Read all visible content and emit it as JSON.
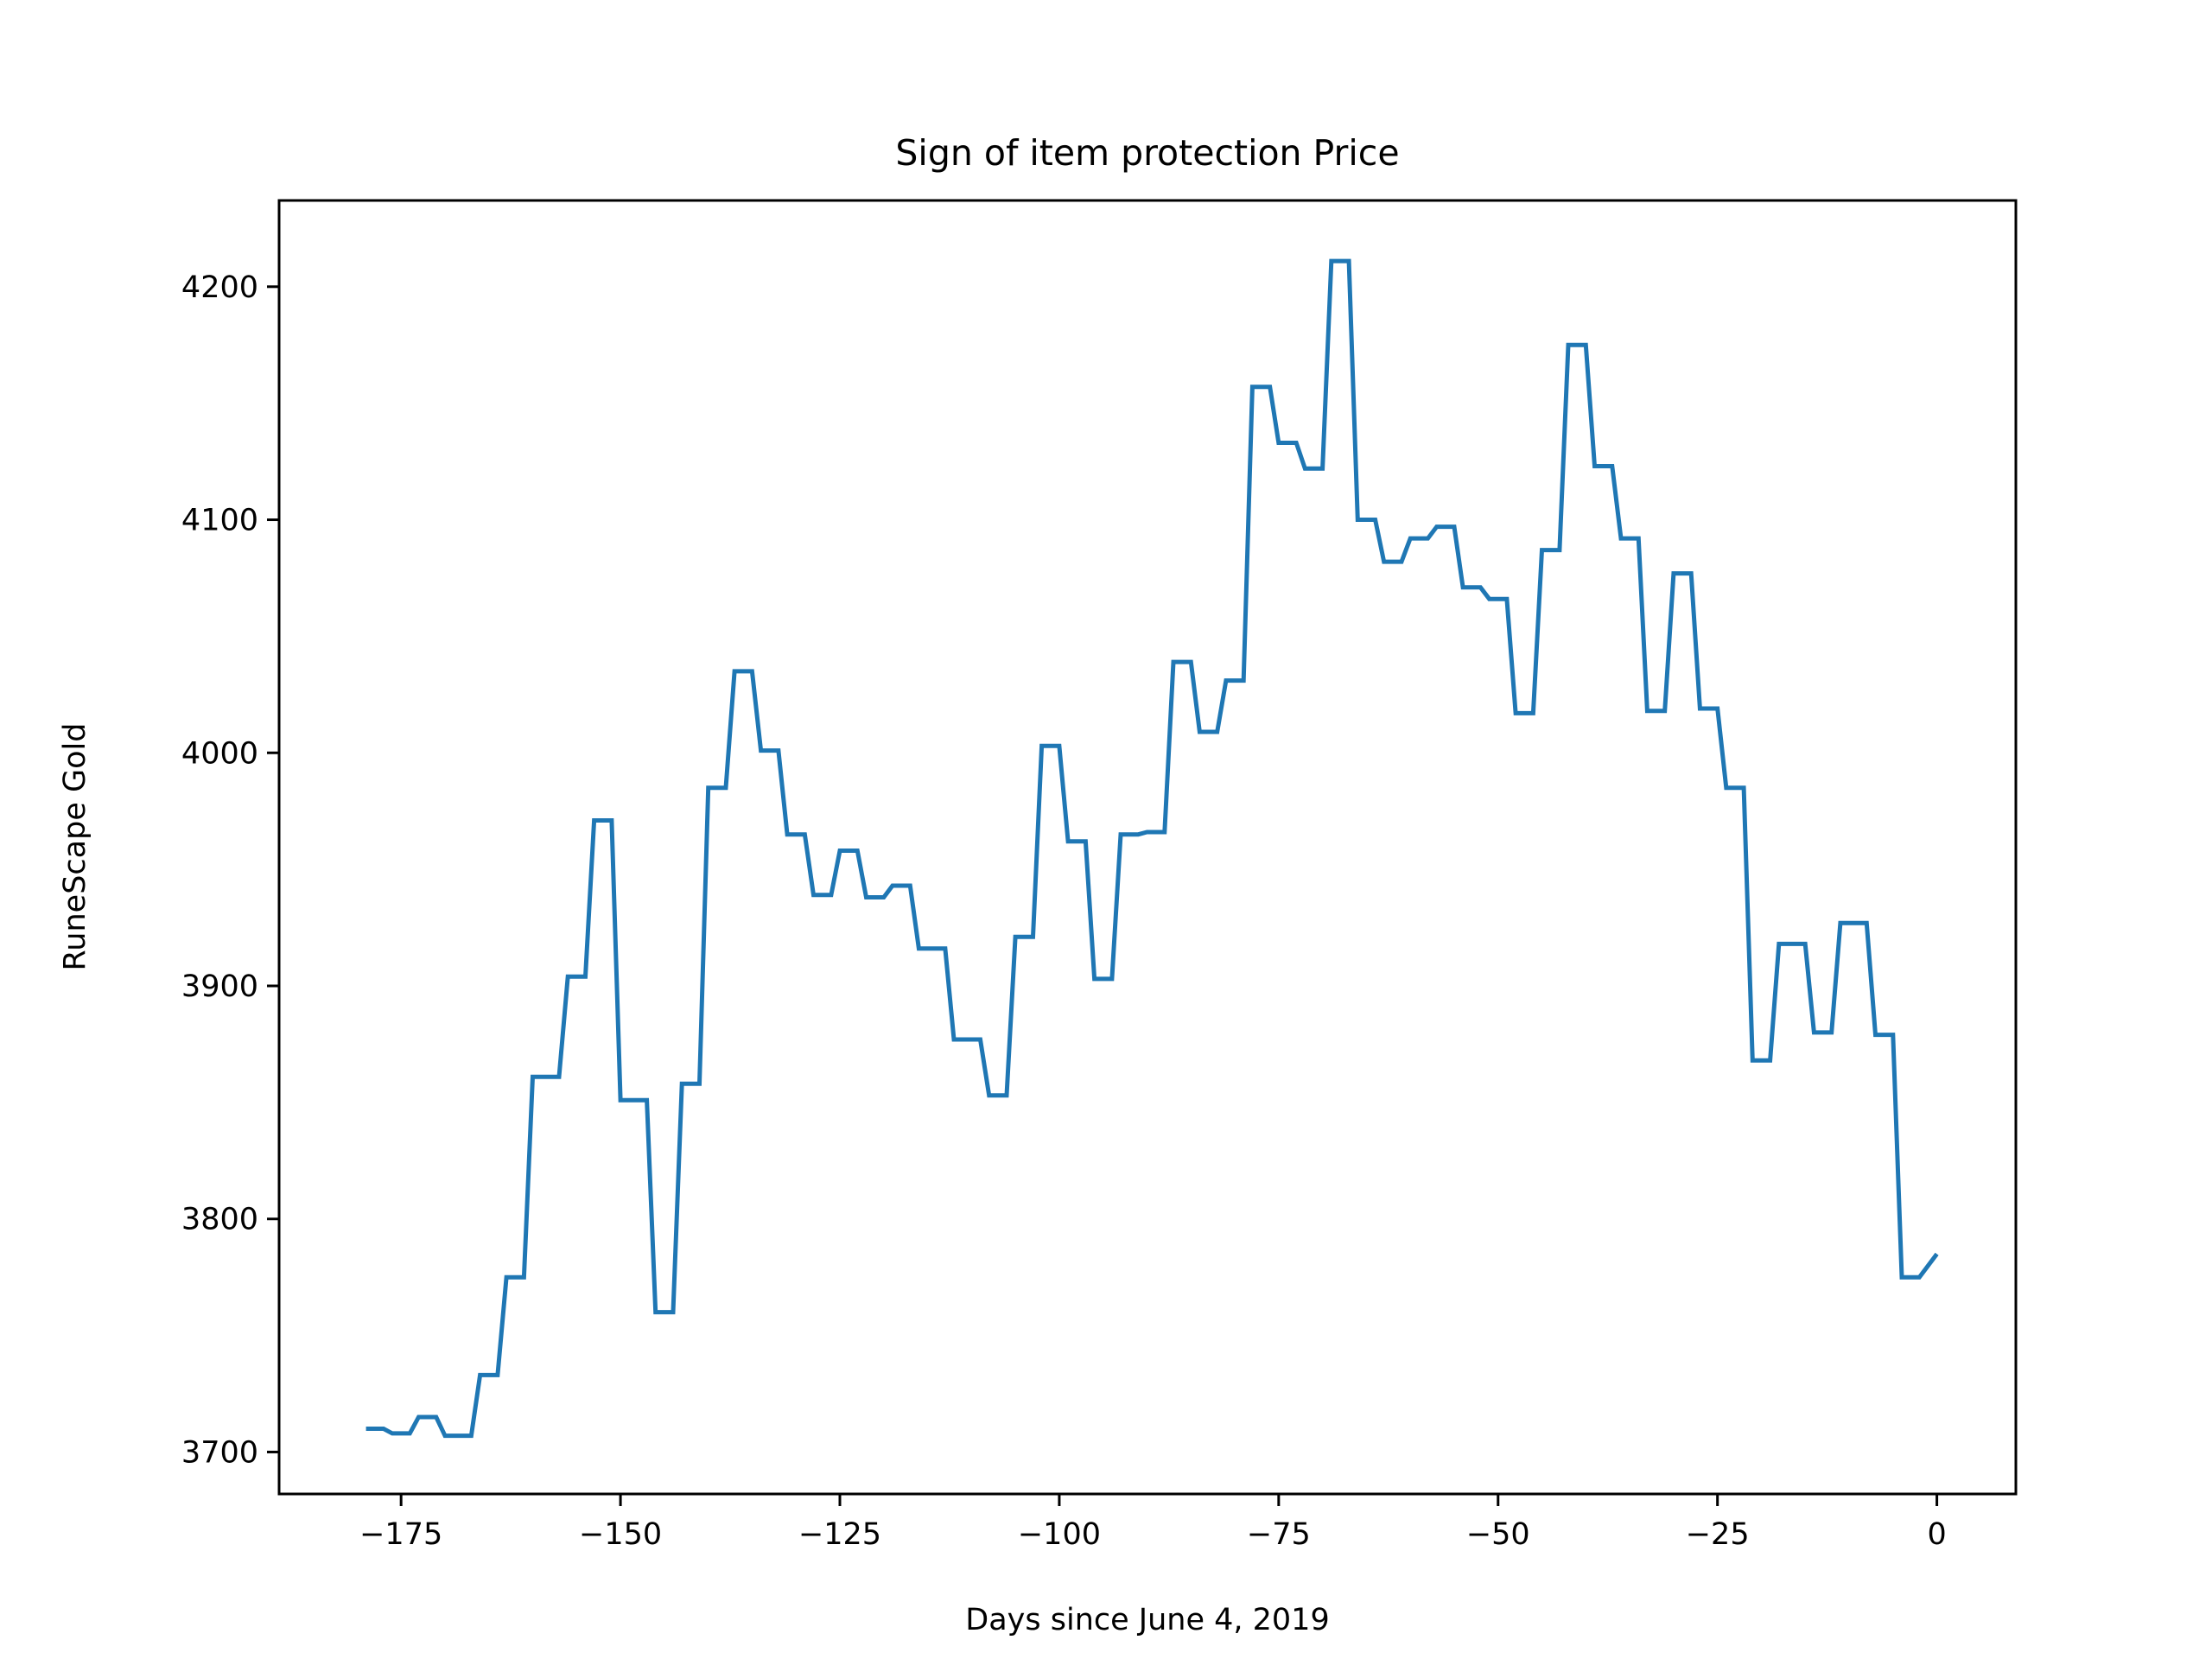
{
  "chart_data": {
    "type": "line",
    "title": "Sign of item protection Price",
    "xlabel": "Days since June 4, 2019",
    "ylabel": "RuneScape Gold",
    "xlim": [
      -188.9,
      9.0
    ],
    "ylim": [
      3682,
      4237
    ],
    "xticks": [
      -175,
      -150,
      -125,
      -100,
      -75,
      -50,
      -25,
      0
    ],
    "xtick_labels": [
      "−175",
      "−150",
      "−125",
      "−100",
      "−75",
      "−50",
      "−25",
      "0"
    ],
    "yticks": [
      3700,
      3800,
      3900,
      4000,
      4100,
      4200
    ],
    "ytick_labels": [
      "3700",
      "3800",
      "3900",
      "4000",
      "4100",
      "4200"
    ],
    "grid": false,
    "legend": "none",
    "series": [
      {
        "color": "#1f77b4",
        "x": [
          -179,
          -177,
          -176,
          -174,
          -173,
          -171,
          -170,
          -167,
          -166,
          -164,
          -163,
          -161,
          -160,
          -157,
          -156,
          -154,
          -153,
          -151,
          -150,
          -147,
          -146,
          -144,
          -143,
          -141,
          -140,
          -138,
          -137,
          -135,
          -134,
          -132,
          -131,
          -129,
          -128,
          -126,
          -125,
          -123,
          -122,
          -120,
          -119,
          -117,
          -116,
          -113,
          -112,
          -109,
          -108,
          -106,
          -105,
          -103,
          -102,
          -100,
          -99,
          -97,
          -96,
          -94,
          -93,
          -91,
          -90,
          -88,
          -87,
          -85,
          -84,
          -82,
          -81,
          -79,
          -78,
          -76,
          -75,
          -73,
          -72,
          -70,
          -69,
          -67,
          -66,
          -64,
          -63,
          -61,
          -60,
          -58,
          -57,
          -55,
          -54,
          -52,
          -51,
          -49,
          -48,
          -46,
          -45,
          -43,
          -42,
          -40,
          -39,
          -37,
          -36,
          -34,
          -33,
          -31,
          -30,
          -28,
          -27,
          -25,
          -24,
          -22,
          -21,
          -19,
          -18,
          -15,
          -14,
          -12,
          -11,
          -8,
          -7,
          -5,
          -4,
          -2,
          0
        ],
        "y": [
          3710,
          3710,
          3708,
          3708,
          3715,
          3715,
          3707,
          3707,
          3733,
          3733,
          3775,
          3775,
          3861,
          3861,
          3904,
          3904,
          3971,
          3971,
          3851,
          3851,
          3760,
          3760,
          3858,
          3858,
          3985,
          3985,
          4035,
          4035,
          4001,
          4001,
          3965,
          3965,
          3939,
          3939,
          3958,
          3958,
          3938,
          3938,
          3943,
          3943,
          3916,
          3916,
          3877,
          3877,
          3853,
          3853,
          3921,
          3921,
          4003,
          4003,
          3962,
          3962,
          3903,
          3903,
          3965,
          3965,
          3966,
          3966,
          4039,
          4039,
          4009,
          4009,
          4031,
          4031,
          4157,
          4157,
          4133,
          4133,
          4122,
          4122,
          4211,
          4211,
          4100,
          4100,
          4082,
          4082,
          4092,
          4092,
          4097,
          4097,
          4071,
          4071,
          4066,
          4066,
          4017,
          4017,
          4087,
          4087,
          4175,
          4175,
          4123,
          4123,
          4092,
          4092,
          4018,
          4018,
          4077,
          4077,
          4019,
          4019,
          3985,
          3985,
          3868,
          3868,
          3918,
          3918,
          3880,
          3880,
          3927,
          3927,
          3879,
          3879,
          3775,
          3775,
          3785
        ]
      }
    ]
  }
}
